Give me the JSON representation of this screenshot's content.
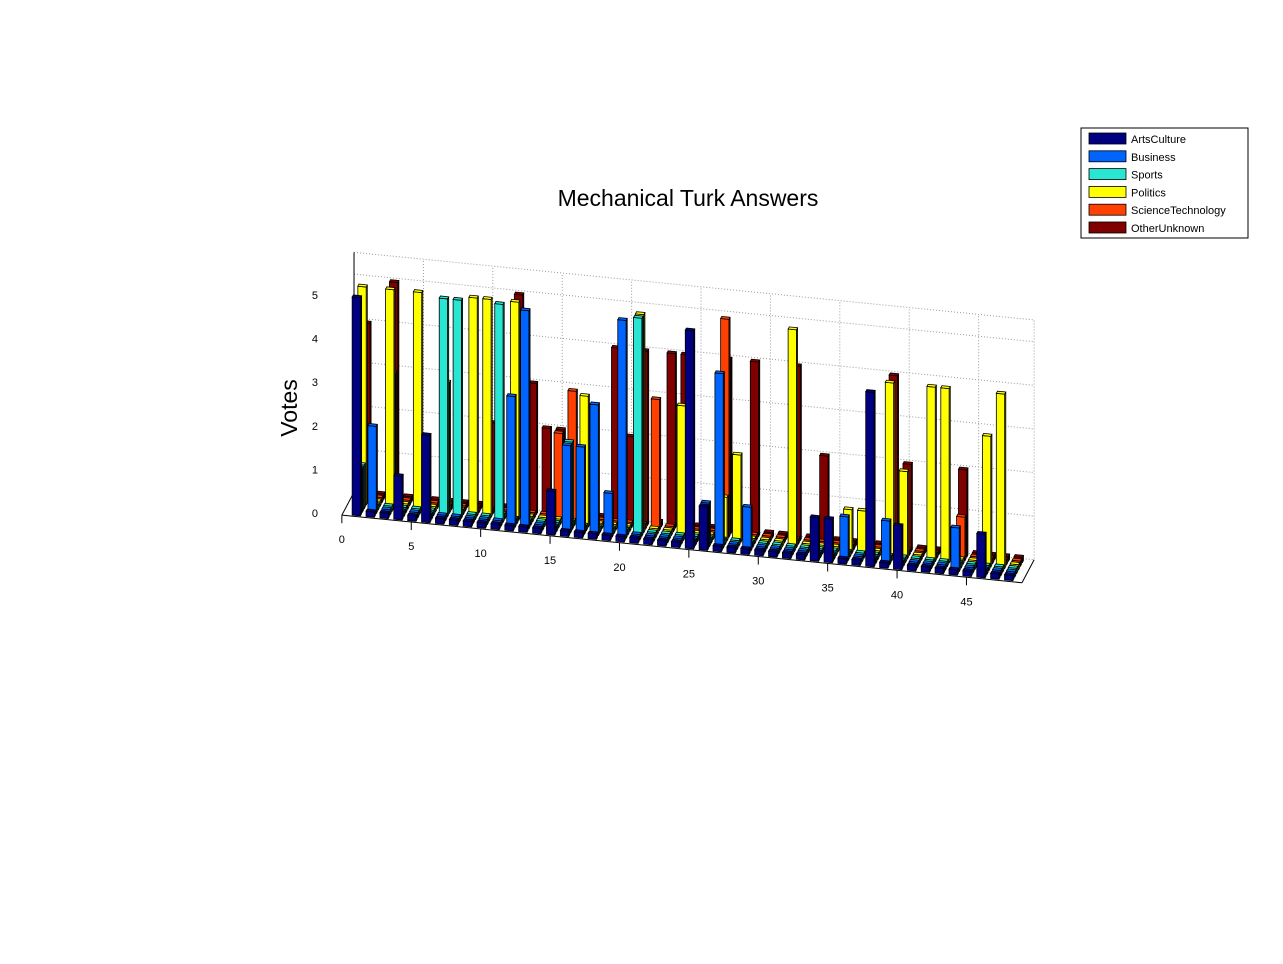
{
  "chart_data": {
    "type": "bar",
    "style": "3d-bar",
    "title": "Mechanical Turk Answers",
    "xlabel": "",
    "ylabel": "Votes",
    "xlim": [
      0,
      49
    ],
    "ylim": [
      0,
      5
    ],
    "x_ticks": [
      0,
      5,
      10,
      15,
      20,
      25,
      30,
      35,
      40,
      45
    ],
    "y_ticks": [
      0,
      1,
      2,
      3,
      4,
      5
    ],
    "grid": true,
    "legend_position": "top-right",
    "x": [
      1,
      2,
      3,
      4,
      5,
      6,
      7,
      8,
      9,
      10,
      11,
      12,
      13,
      14,
      15,
      16,
      17,
      18,
      19,
      20,
      21,
      22,
      23,
      24,
      25,
      26,
      27,
      28,
      29,
      30,
      31,
      32,
      33,
      34,
      35,
      36,
      37,
      38,
      39,
      40,
      41,
      42,
      43,
      44,
      45,
      46,
      47,
      48
    ],
    "series": [
      {
        "name": "ArtsCulture",
        "color": "#000080",
        "values": [
          5,
          0,
          0,
          1,
          0,
          2,
          0,
          0,
          0,
          0,
          0,
          0,
          0,
          0,
          1,
          0,
          0,
          0,
          0,
          0,
          0,
          0,
          0,
          0,
          5,
          1,
          0,
          0,
          0,
          0,
          0,
          0,
          0,
          1,
          1,
          0,
          0,
          4,
          0,
          1,
          0,
          0,
          0,
          0,
          0,
          1,
          0,
          0
        ]
      },
      {
        "name": "Business",
        "color": "#0064ff",
        "values": [
          1,
          2,
          0,
          0,
          0,
          0,
          0,
          0,
          0,
          0,
          0,
          3,
          5,
          0,
          0,
          2,
          2,
          3,
          1,
          5,
          0,
          0,
          0,
          0,
          0,
          1,
          4,
          0,
          1,
          0,
          0,
          0,
          0,
          0,
          0,
          1,
          0,
          0,
          1,
          0,
          0,
          0,
          0,
          1,
          0,
          0,
          0,
          0
        ]
      },
      {
        "name": "Sports",
        "color": "#28e6d2",
        "values": [
          1,
          0,
          0,
          0,
          0,
          0,
          5,
          5,
          0,
          0,
          5,
          0,
          0,
          0,
          0,
          2,
          0,
          0,
          0,
          0,
          5,
          0,
          0,
          0,
          0,
          0,
          0,
          0,
          0,
          0,
          0,
          0,
          0,
          0,
          0,
          0,
          0,
          0,
          0,
          0,
          0,
          0,
          0,
          0,
          0,
          0,
          0,
          0
        ]
      },
      {
        "name": "Politics",
        "color": "#ffff00",
        "values": [
          5,
          0,
          5,
          0,
          5,
          0,
          3,
          0,
          5,
          5,
          0,
          5,
          0,
          0,
          0,
          0,
          3,
          0,
          0,
          0,
          5,
          0,
          0,
          3,
          0,
          0,
          1,
          2,
          0,
          0,
          0,
          5,
          0,
          0,
          0,
          1,
          1,
          0,
          4,
          2,
          0,
          4,
          4,
          0,
          0,
          3,
          4,
          0
        ]
      },
      {
        "name": "ScienceTechnology",
        "color": "#ff4000",
        "values": [
          0,
          0,
          3,
          0,
          0,
          0,
          0,
          0,
          0,
          0,
          0,
          0,
          0,
          0,
          2,
          3,
          0,
          0,
          0,
          0,
          0,
          3,
          0,
          2,
          0,
          0,
          5,
          0,
          0,
          0,
          0,
          0,
          0,
          0,
          0,
          0,
          0,
          0,
          0,
          0,
          0,
          0,
          0,
          1,
          0,
          0,
          0,
          0
        ]
      },
      {
        "name": "OtherUnknown",
        "color": "#800000",
        "values": [
          4,
          0,
          5,
          0,
          0,
          0,
          0,
          0,
          0,
          2,
          0,
          5,
          3,
          2,
          2,
          0,
          0,
          0,
          4,
          2,
          4,
          0,
          4,
          4,
          0,
          0,
          4,
          0,
          4,
          0,
          0,
          4,
          0,
          2,
          0,
          0,
          0,
          0,
          4,
          2,
          0,
          0,
          0,
          2,
          0,
          0,
          0,
          0
        ]
      }
    ]
  }
}
